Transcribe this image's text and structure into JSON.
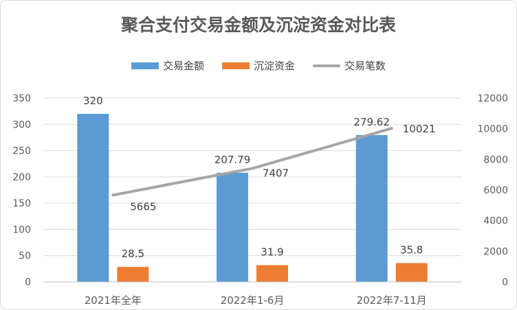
{
  "chart_data": {
    "type": "bar",
    "title": "聚合支付交易金额及沉淀资金对比表",
    "categories": [
      "2021年全年",
      "2022年1-6月",
      "2022年7-11月"
    ],
    "series": [
      {
        "name": "交易金额",
        "type": "bar",
        "axis": "left",
        "color": "#5b9bd5",
        "values": [
          320,
          207.79,
          279.62
        ]
      },
      {
        "name": "沉淀资金",
        "type": "bar",
        "axis": "left",
        "color": "#ed7d31",
        "values": [
          28.5,
          31.9,
          35.8
        ]
      },
      {
        "name": "交易笔数",
        "type": "line",
        "axis": "right",
        "color": "#a5a5a5",
        "values": [
          5665,
          7407,
          10021
        ]
      }
    ],
    "y_left": {
      "min": 0,
      "max": 350,
      "ticks": [
        0,
        50,
        100,
        150,
        200,
        250,
        300,
        350
      ]
    },
    "y_right": {
      "min": 0,
      "max": 12000,
      "ticks": [
        0,
        2000,
        4000,
        6000,
        8000,
        10000,
        12000
      ]
    },
    "grid": true,
    "legend_position": "top"
  }
}
